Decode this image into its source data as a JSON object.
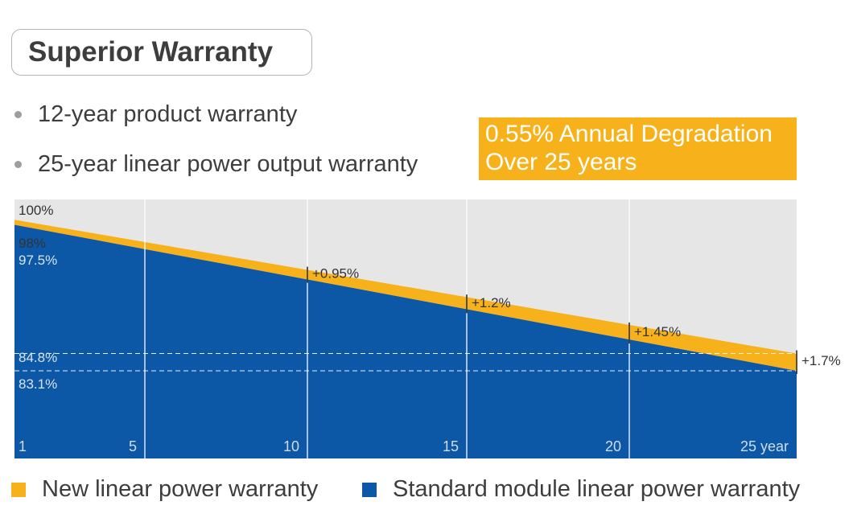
{
  "header": {
    "title": "Superior Warranty"
  },
  "bullets": [
    {
      "text": "12-year product warranty"
    },
    {
      "text": "25-year linear power output warranty"
    }
  ],
  "callout": {
    "line1": "0.55% Annual Degradation",
    "line2": "Over 25 years"
  },
  "colors": {
    "new_warranty": "#f7b21b",
    "standard_warranty": "#0d57a7",
    "background": "#e6e6e6",
    "grid": "#ffffff"
  },
  "chart_data": {
    "type": "area",
    "x_range": [
      1,
      25
    ],
    "ylim": [
      78,
      100
    ],
    "x_tick_labels": [
      "1",
      "5",
      "10",
      "15",
      "20",
      "25 year"
    ],
    "x_tick_values": [
      1,
      5,
      10,
      15,
      20,
      25
    ],
    "series": [
      {
        "name": "New linear power warranty",
        "x": [
          1,
          25
        ],
        "values": [
          98,
          84.8
        ]
      },
      {
        "name": "Standard module linear power warranty",
        "x": [
          1,
          25
        ],
        "values": [
          97.5,
          83.1
        ]
      }
    ],
    "y_annotations": [
      {
        "text": "100%",
        "value": 100
      },
      {
        "text": "98%",
        "value": 98
      },
      {
        "text": "97.5%",
        "value": 97.5
      },
      {
        "text": "84.8%",
        "value": 84.8
      },
      {
        "text": "83.1%",
        "value": 83.1
      }
    ],
    "gap_annotations": [
      {
        "x": 10,
        "text": "+0.95%"
      },
      {
        "x": 15,
        "text": "+1.2%"
      },
      {
        "x": 20,
        "text": "+1.45%"
      },
      {
        "x": 25,
        "text": "+1.7%"
      }
    ],
    "reference_lines": [
      84.8,
      83.1
    ]
  },
  "legend": [
    {
      "label": "New linear power warranty"
    },
    {
      "label": "Standard module linear power warranty"
    }
  ]
}
